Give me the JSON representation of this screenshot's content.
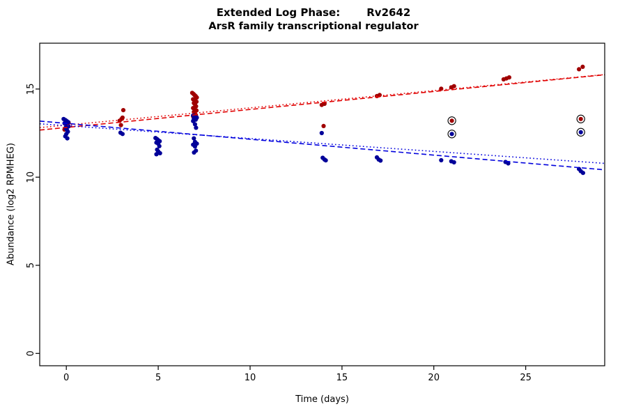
{
  "chart_data": {
    "type": "scatter",
    "title_left": "Extended Log Phase:",
    "title_right": "Rv2642",
    "subtitle": "ArsR family transcriptional regulator",
    "xlabel": "Time  (days)",
    "ylabel": "Abundance  (log2 RPMHEG)",
    "xlim": [
      -1.45,
      29.3
    ],
    "ylim": [
      -0.7,
      17.6
    ],
    "x_ticks": [
      0,
      5,
      10,
      15,
      20,
      25
    ],
    "y_ticks": [
      0,
      5,
      10,
      15
    ],
    "grid": false,
    "legend": "none",
    "series": [
      {
        "name": "red",
        "point_color": "#a00000",
        "points": [
          [
            -0.1,
            12.7
          ],
          [
            0.0,
            12.95
          ],
          [
            0.06,
            13.02
          ],
          [
            0.12,
            13.1
          ],
          [
            0.03,
            12.85
          ],
          [
            2.9,
            13.2
          ],
          [
            2.97,
            12.95
          ],
          [
            3.0,
            13.3
          ],
          [
            3.06,
            13.38
          ],
          [
            3.1,
            13.8
          ],
          [
            6.85,
            14.78
          ],
          [
            6.92,
            14.72
          ],
          [
            6.98,
            14.66
          ],
          [
            7.04,
            14.6
          ],
          [
            7.1,
            14.52
          ],
          [
            6.9,
            14.42
          ],
          [
            7.0,
            14.35
          ],
          [
            7.08,
            14.28
          ],
          [
            6.94,
            14.2
          ],
          [
            7.0,
            14.12
          ],
          [
            7.06,
            14.02
          ],
          [
            6.9,
            13.92
          ],
          [
            6.98,
            13.85
          ],
          [
            7.08,
            13.78
          ],
          [
            6.94,
            13.7
          ],
          [
            7.0,
            13.62
          ],
          [
            7.05,
            13.52
          ],
          [
            6.9,
            13.45
          ],
          [
            6.98,
            13.4
          ],
          [
            7.08,
            13.35
          ],
          [
            6.95,
            13.3
          ],
          [
            13.9,
            14.1
          ],
          [
            14.05,
            14.16
          ],
          [
            14.0,
            12.9
          ],
          [
            16.9,
            14.6
          ],
          [
            17.05,
            14.66
          ],
          [
            20.4,
            15.02
          ],
          [
            20.95,
            15.1
          ],
          [
            21.1,
            15.16
          ],
          [
            23.8,
            15.55
          ],
          [
            23.95,
            15.6
          ],
          [
            24.1,
            15.66
          ],
          [
            27.9,
            16.12
          ],
          [
            28.1,
            16.26
          ]
        ]
      },
      {
        "name": "blue",
        "point_color": "#000099",
        "points": [
          [
            -0.15,
            13.3
          ],
          [
            -0.05,
            13.24
          ],
          [
            0.02,
            13.18
          ],
          [
            0.1,
            13.12
          ],
          [
            -0.1,
            13.06
          ],
          [
            0.0,
            13.0
          ],
          [
            0.06,
            12.94
          ],
          [
            0.12,
            12.88
          ],
          [
            -0.04,
            12.8
          ],
          [
            0.02,
            12.7
          ],
          [
            0.08,
            12.58
          ],
          [
            0.0,
            12.45
          ],
          [
            -0.06,
            12.32
          ],
          [
            0.05,
            12.2
          ],
          [
            2.95,
            12.52
          ],
          [
            3.06,
            12.45
          ],
          [
            4.85,
            12.22
          ],
          [
            4.93,
            12.16
          ],
          [
            5.0,
            12.1
          ],
          [
            5.08,
            12.04
          ],
          [
            4.9,
            11.96
          ],
          [
            5.0,
            11.9
          ],
          [
            5.06,
            11.76
          ],
          [
            4.94,
            11.56
          ],
          [
            5.0,
            11.46
          ],
          [
            5.1,
            11.36
          ],
          [
            4.9,
            11.3
          ],
          [
            6.9,
            13.5
          ],
          [
            7.0,
            13.44
          ],
          [
            7.1,
            13.38
          ],
          [
            6.94,
            13.32
          ],
          [
            7.04,
            13.26
          ],
          [
            6.9,
            13.18
          ],
          [
            7.0,
            13.0
          ],
          [
            7.06,
            12.8
          ],
          [
            6.94,
            12.2
          ],
          [
            7.0,
            12.0
          ],
          [
            7.1,
            11.9
          ],
          [
            6.9,
            11.84
          ],
          [
            7.0,
            11.74
          ],
          [
            7.05,
            11.5
          ],
          [
            6.95,
            11.4
          ],
          [
            13.9,
            12.5
          ],
          [
            13.95,
            11.1
          ],
          [
            14.05,
            11.0
          ],
          [
            14.12,
            10.95
          ],
          [
            16.9,
            11.12
          ],
          [
            17.0,
            11.0
          ],
          [
            17.1,
            10.94
          ],
          [
            20.4,
            10.96
          ],
          [
            20.95,
            10.9
          ],
          [
            21.1,
            10.84
          ],
          [
            23.9,
            10.86
          ],
          [
            24.05,
            10.78
          ],
          [
            27.9,
            10.46
          ],
          [
            28.0,
            10.34
          ],
          [
            28.12,
            10.24
          ]
        ]
      }
    ],
    "flagged_points": [
      {
        "x": 20.98,
        "y": 13.2,
        "series": "red"
      },
      {
        "x": 28.0,
        "y": 13.3,
        "series": "red"
      },
      {
        "x": 20.98,
        "y": 12.45,
        "series": "blue"
      },
      {
        "x": 28.0,
        "y": 12.55,
        "series": "blue"
      }
    ],
    "trend_lines": [
      {
        "name": "red-dashed",
        "color": "#e00000",
        "style": "dashed",
        "intercept": 12.82,
        "slope": 0.102
      },
      {
        "name": "red-dotted",
        "color": "#e00000",
        "style": "dotted",
        "intercept": 12.95,
        "slope": 0.098
      },
      {
        "name": "blue-dashed",
        "color": "#0000dd",
        "style": "dashed",
        "intercept": 13.05,
        "slope": -0.09
      },
      {
        "name": "blue-dotted",
        "color": "#0000dd",
        "style": "dotted",
        "intercept": 12.92,
        "slope": -0.073
      }
    ]
  }
}
